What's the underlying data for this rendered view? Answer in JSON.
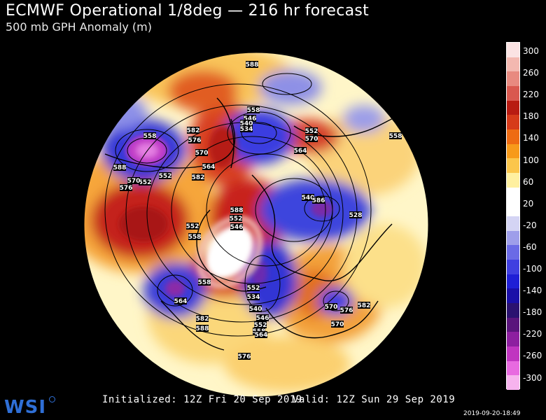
{
  "header": {
    "title": "ECMWF Operational 1/8deg — 216 hr forecast",
    "subtitle": "500 mb GPH Anomaly (m)"
  },
  "colorbar": {
    "ticks": [
      "300",
      "260",
      "220",
      "180",
      "140",
      "100",
      "60",
      "20",
      "-20",
      "-60",
      "-100",
      "-140",
      "-180",
      "-220",
      "-260",
      "-300"
    ],
    "colors": [
      "#fbe3e3",
      "#f3b8b0",
      "#e88a80",
      "#d9584f",
      "#b81b12",
      "#d63a1a",
      "#ee6b12",
      "#f79a1a",
      "#fbc64b",
      "#fff0a0",
      "#ffffff",
      "#ffffff",
      "#d4d4f4",
      "#9e9eea",
      "#6a6ae6",
      "#3f3fe0",
      "#1f1fd6",
      "#1a0fa8",
      "#2b1270",
      "#5a147c",
      "#8d1fa0",
      "#c035c0",
      "#e86ae0",
      "#f7b3ee"
    ]
  },
  "map": {
    "contour_labels": [
      "588",
      "558",
      "546",
      "540",
      "534",
      "582",
      "576",
      "570",
      "564",
      "558",
      "552",
      "570",
      "564",
      "558",
      "588",
      "552",
      "582",
      "552",
      "570",
      "576",
      "588",
      "552",
      "546",
      "552",
      "558",
      "540",
      "528",
      "558",
      "564",
      "552",
      "534",
      "540",
      "546",
      "552",
      "558",
      "564",
      "570",
      "576",
      "582",
      "570",
      "576",
      "586",
      "582",
      "588"
    ]
  },
  "footer": {
    "initialized": "Initialized: 12Z Fri 20 Sep 2019",
    "valid": "Valid: 12Z Sun 29 Sep 2019",
    "logo": "WSI",
    "timestamp": "2019-09-20-18:49"
  }
}
